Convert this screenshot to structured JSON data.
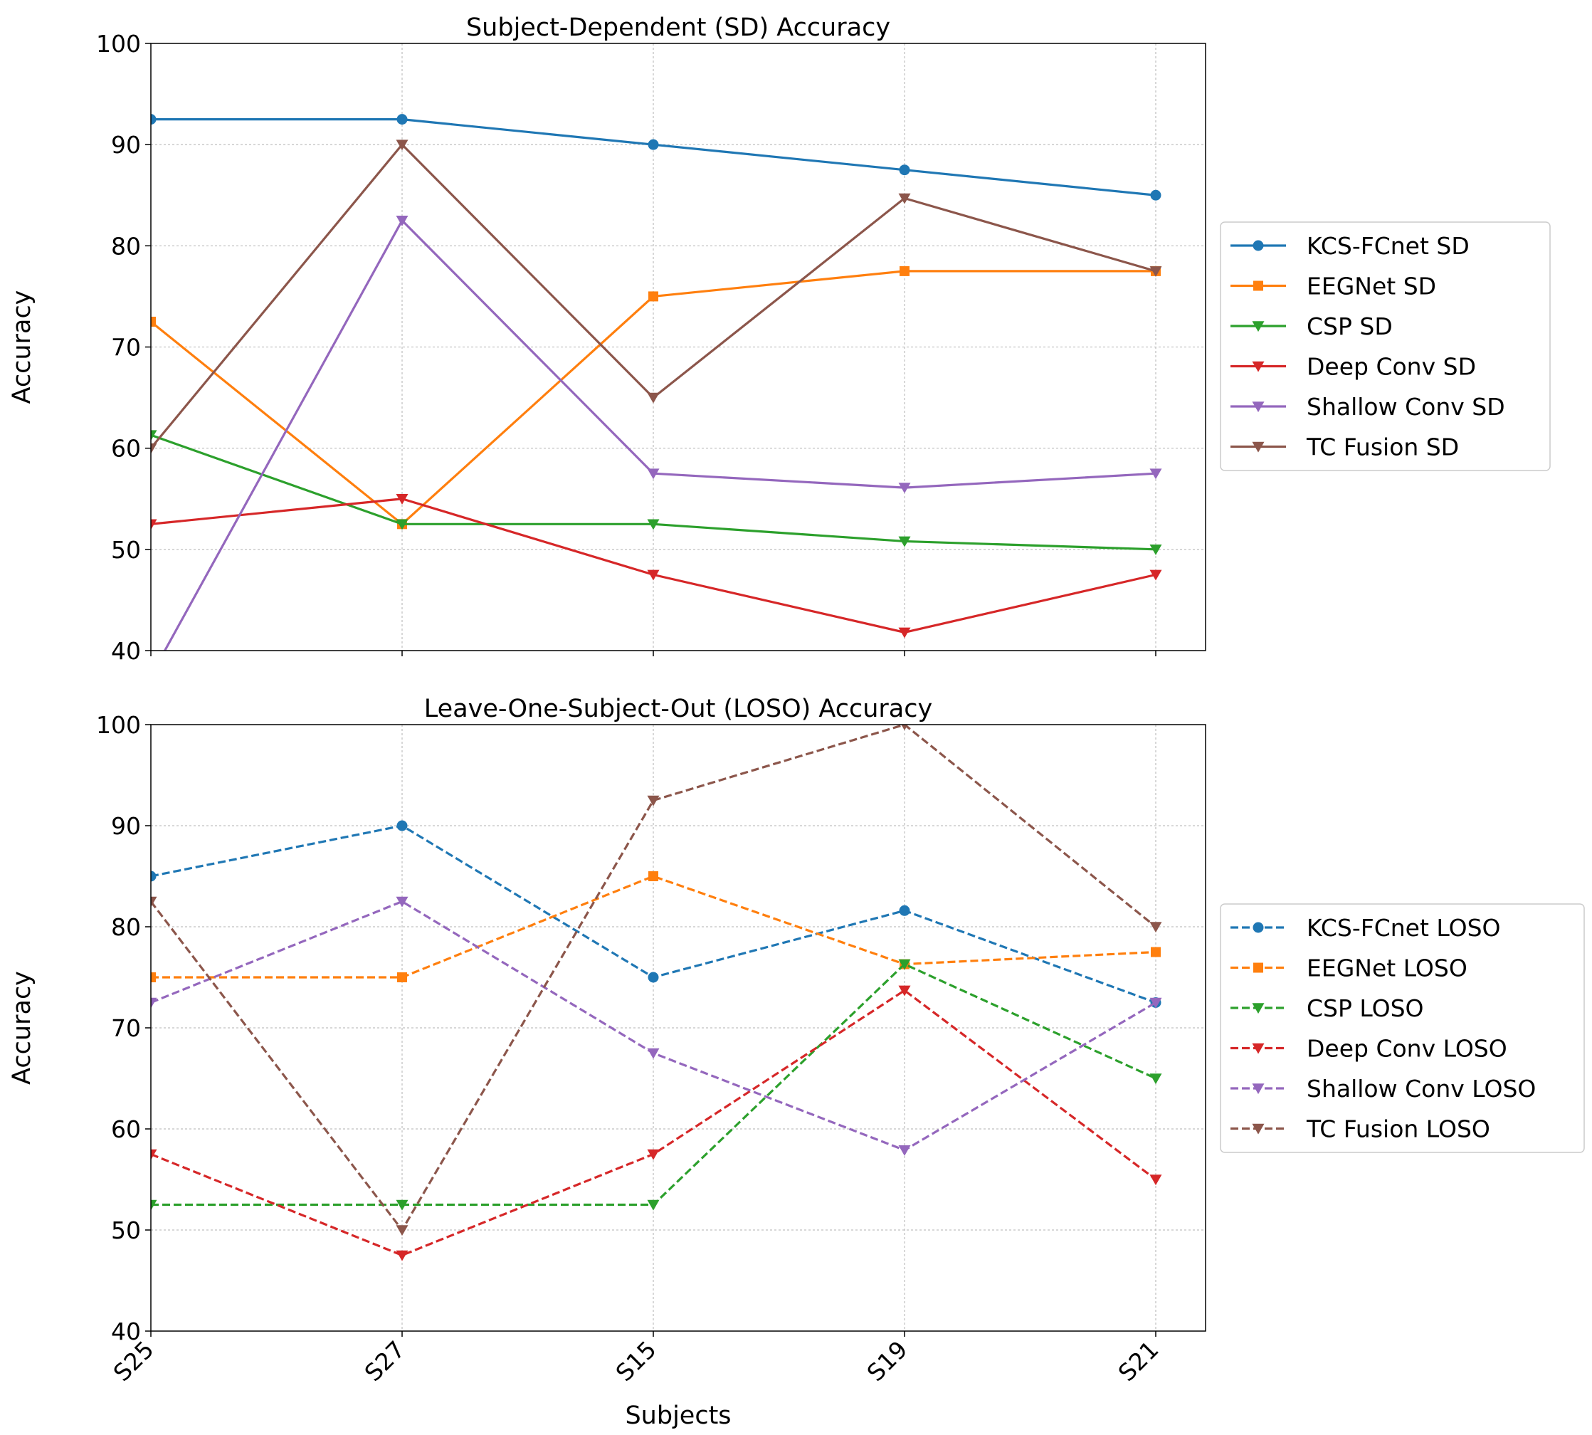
{
  "chart_data": [
    {
      "type": "line",
      "title": "Subject-Dependent (SD) Accuracy",
      "xlabel": "",
      "ylabel": "Accuracy",
      "categories": [
        "S25",
        "S27",
        "S15",
        "S19",
        "S21"
      ],
      "ylim": [
        40,
        100
      ],
      "yticks": [
        40,
        50,
        60,
        70,
        80,
        90,
        100
      ],
      "grid": true,
      "legend_position": "right",
      "series": [
        {
          "name": "KCS-FCnet SD",
          "color": "#1f77b4",
          "marker": "circle",
          "dash": false,
          "values": [
            92.5,
            92.5,
            90.0,
            87.5,
            85.0
          ]
        },
        {
          "name": "EEGNet SD",
          "color": "#ff7f0e",
          "marker": "square",
          "dash": false,
          "values": [
            72.5,
            52.5,
            75.0,
            77.5,
            77.5
          ]
        },
        {
          "name": "CSP SD",
          "color": "#2ca02c",
          "marker": "triangle-down",
          "dash": false,
          "values": [
            61.3,
            52.5,
            52.5,
            50.8,
            50.0
          ]
        },
        {
          "name": "Deep Conv SD",
          "color": "#d62728",
          "marker": "triangle-down",
          "dash": false,
          "values": [
            52.5,
            55.0,
            47.5,
            41.8,
            47.5
          ]
        },
        {
          "name": "Shallow Conv SD",
          "color": "#9467bd",
          "marker": "triangle-down",
          "dash": false,
          "values": [
            37.5,
            82.5,
            57.5,
            56.1,
            57.5
          ]
        },
        {
          "name": "TC Fusion SD",
          "color": "#8c564b",
          "marker": "triangle-down",
          "dash": false,
          "values": [
            60.0,
            90.0,
            65.0,
            84.7,
            77.5
          ]
        }
      ]
    },
    {
      "type": "line",
      "title": "Leave-One-Subject-Out (LOSO) Accuracy",
      "xlabel": "Subjects",
      "ylabel": "Accuracy",
      "categories": [
        "S25",
        "S27",
        "S15",
        "S19",
        "S21"
      ],
      "ylim": [
        40,
        100
      ],
      "yticks": [
        40,
        50,
        60,
        70,
        80,
        90,
        100
      ],
      "grid": true,
      "legend_position": "right",
      "series": [
        {
          "name": "KCS-FCnet LOSO",
          "color": "#1f77b4",
          "marker": "circle",
          "dash": true,
          "values": [
            85.0,
            90.0,
            75.0,
            81.6,
            72.5
          ]
        },
        {
          "name": "EEGNet LOSO",
          "color": "#ff7f0e",
          "marker": "square",
          "dash": true,
          "values": [
            75.0,
            75.0,
            85.0,
            76.3,
            77.5
          ]
        },
        {
          "name": "CSP LOSO",
          "color": "#2ca02c",
          "marker": "triangle-down",
          "dash": true,
          "values": [
            52.5,
            52.5,
            52.5,
            76.3,
            65.0
          ]
        },
        {
          "name": "Deep Conv LOSO",
          "color": "#d62728",
          "marker": "triangle-down",
          "dash": true,
          "values": [
            57.5,
            47.5,
            57.5,
            73.7,
            55.0
          ]
        },
        {
          "name": "Shallow Conv LOSO",
          "color": "#9467bd",
          "marker": "triangle-down",
          "dash": true,
          "values": [
            72.5,
            82.5,
            67.5,
            57.9,
            72.5
          ]
        },
        {
          "name": "TC Fusion LOSO",
          "color": "#8c564b",
          "marker": "triangle-down",
          "dash": true,
          "values": [
            82.5,
            50.0,
            92.5,
            100.0,
            80.0
          ]
        }
      ]
    }
  ]
}
